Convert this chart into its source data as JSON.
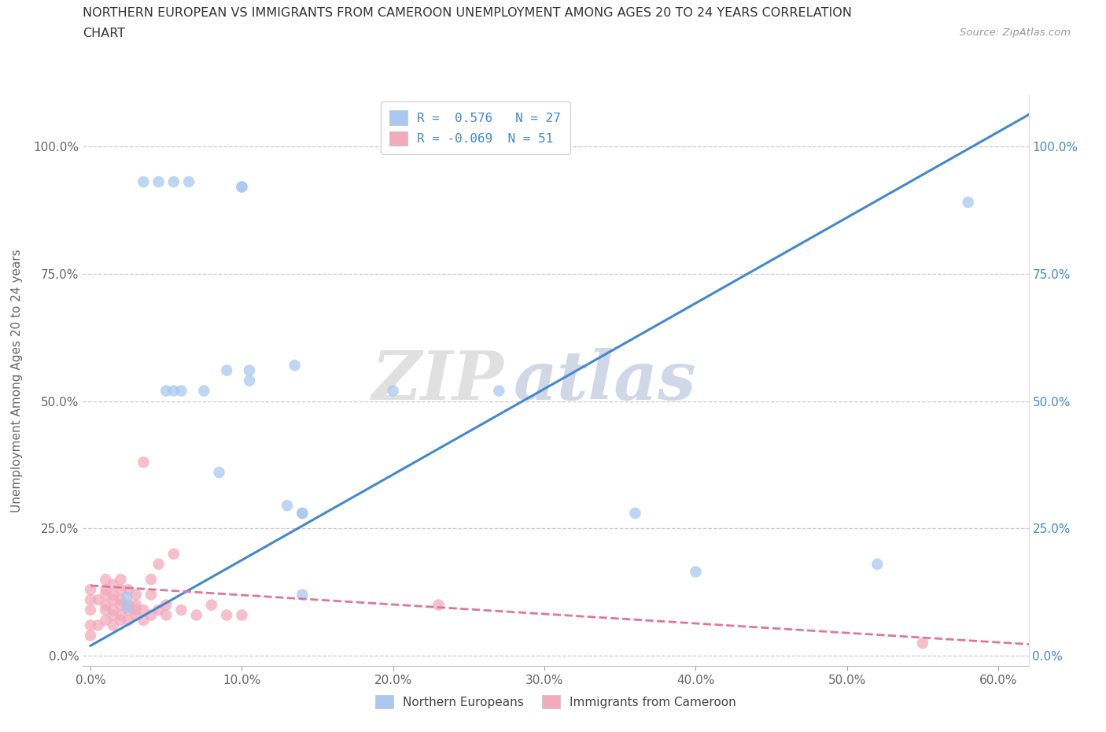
{
  "title_line1": "NORTHERN EUROPEAN VS IMMIGRANTS FROM CAMEROON UNEMPLOYMENT AMONG AGES 20 TO 24 YEARS CORRELATION",
  "title_line2": "CHART",
  "source": "Source: ZipAtlas.com",
  "ylabel": "Unemployment Among Ages 20 to 24 years",
  "xlim": [
    -0.005,
    0.62
  ],
  "ylim": [
    -0.02,
    1.1
  ],
  "xtick_values": [
    0.0,
    0.1,
    0.2,
    0.3,
    0.4,
    0.5,
    0.6
  ],
  "ytick_values": [
    0.0,
    0.25,
    0.5,
    0.75,
    1.0
  ],
  "blue_r": "0.576",
  "blue_n": "27",
  "pink_r": "-0.069",
  "pink_n": "51",
  "blue_color": "#a8c8f0",
  "pink_color": "#f2aabc",
  "blue_line_color": "#4488cc",
  "pink_line_color": "#dd7799",
  "watermark_zip_color": "#e0e0e0",
  "watermark_atlas_color": "#d0d8e8",
  "blue_scatter_x": [
    0.024,
    0.024,
    0.035,
    0.045,
    0.055,
    0.065,
    0.075,
    0.085,
    0.09,
    0.1,
    0.1,
    0.105,
    0.105,
    0.13,
    0.135,
    0.14,
    0.14,
    0.14,
    0.2,
    0.27,
    0.36,
    0.4,
    0.52,
    0.58,
    0.05,
    0.055,
    0.06
  ],
  "blue_scatter_y": [
    0.095,
    0.115,
    0.93,
    0.93,
    0.93,
    0.93,
    0.52,
    0.36,
    0.56,
    0.92,
    0.92,
    0.56,
    0.54,
    0.295,
    0.57,
    0.12,
    0.28,
    0.28,
    0.52,
    0.52,
    0.28,
    0.165,
    0.18,
    0.89,
    0.52,
    0.52,
    0.52
  ],
  "pink_scatter_x": [
    0.0,
    0.0,
    0.0,
    0.0,
    0.0,
    0.005,
    0.005,
    0.01,
    0.01,
    0.01,
    0.01,
    0.01,
    0.01,
    0.015,
    0.015,
    0.015,
    0.015,
    0.015,
    0.015,
    0.02,
    0.02,
    0.02,
    0.02,
    0.02,
    0.02,
    0.025,
    0.025,
    0.025,
    0.025,
    0.03,
    0.03,
    0.03,
    0.03,
    0.035,
    0.035,
    0.035,
    0.04,
    0.04,
    0.04,
    0.045,
    0.045,
    0.05,
    0.05,
    0.055,
    0.06,
    0.07,
    0.08,
    0.09,
    0.1,
    0.23,
    0.55
  ],
  "pink_scatter_y": [
    0.04,
    0.06,
    0.09,
    0.11,
    0.13,
    0.06,
    0.11,
    0.07,
    0.09,
    0.1,
    0.12,
    0.13,
    0.15,
    0.06,
    0.08,
    0.09,
    0.11,
    0.12,
    0.14,
    0.07,
    0.08,
    0.1,
    0.11,
    0.13,
    0.15,
    0.07,
    0.09,
    0.1,
    0.13,
    0.08,
    0.09,
    0.1,
    0.12,
    0.07,
    0.09,
    0.38,
    0.08,
    0.12,
    0.15,
    0.09,
    0.18,
    0.08,
    0.1,
    0.2,
    0.09,
    0.08,
    0.1,
    0.08,
    0.08,
    0.1,
    0.025
  ],
  "blue_trend_x0": 0.0,
  "blue_trend_x1": 0.625,
  "blue_trend_y0": 0.02,
  "blue_trend_y1": 1.07,
  "pink_trend_x0": 0.0,
  "pink_trend_x1": 0.625,
  "pink_trend_y0": 0.138,
  "pink_trend_y1": 0.022
}
